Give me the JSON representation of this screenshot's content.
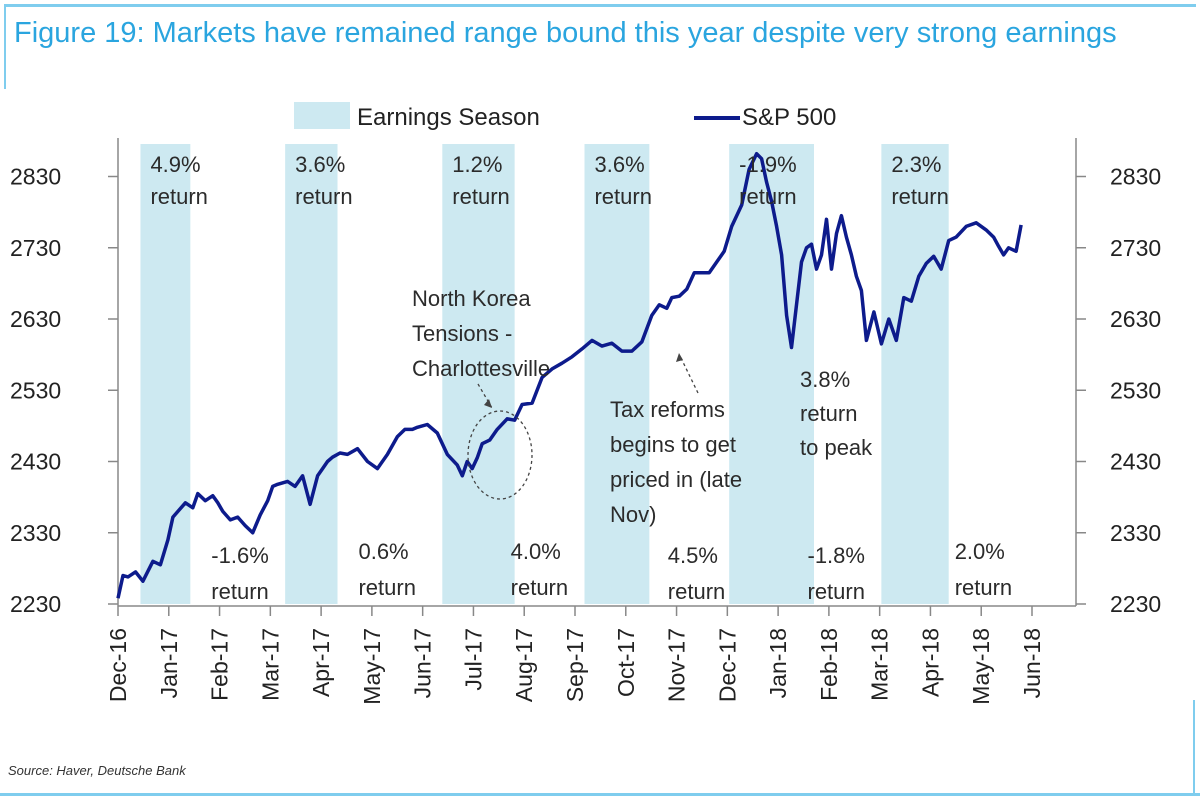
{
  "figure": {
    "title": "Figure 19: Markets have remained range bound this year despite very strong earnings",
    "source": "Source: Haver, Deutsche Bank"
  },
  "colors": {
    "title": "#2aa5df",
    "series_line": "#0d1b8c",
    "shading": "#cde9f1",
    "axis": "#888888",
    "frame_rule": "#7fcdee"
  },
  "chart_data": {
    "type": "line",
    "title": "Figure 19: Markets have remained range bound this year despite very strong earnings",
    "xlabel": "",
    "ylabel": "",
    "legend": {
      "placement": "top-center",
      "entries": [
        {
          "name": "Earnings Season",
          "kind": "shaded-band"
        },
        {
          "name": "S&P 500",
          "kind": "line"
        }
      ]
    },
    "x_tick_labels": [
      "Dec-16",
      "Jan-17",
      "Feb-17",
      "Mar-17",
      "Apr-17",
      "May-17",
      "Jun-17",
      "Jul-17",
      "Aug-17",
      "Sep-17",
      "Oct-17",
      "Nov-17",
      "Dec-17",
      "Jan-18",
      "Feb-18",
      "Mar-18",
      "Apr-18",
      "May-18",
      "Jun-18"
    ],
    "x_range_months": [
      0,
      18.6
    ],
    "ylim": [
      2230,
      2870
    ],
    "y_ticks": [
      2230,
      2330,
      2430,
      2530,
      2630,
      2730,
      2830
    ],
    "y_axes": [
      "left",
      "right"
    ],
    "grid": false,
    "earnings_seasons": [
      {
        "start": 0.45,
        "end": 1.45,
        "label": [
          "4.9%",
          "return"
        ],
        "label_position": "top"
      },
      {
        "start": 3.35,
        "end": 4.4,
        "label": [
          "3.6%",
          "return"
        ],
        "label_position": "top"
      },
      {
        "start": 6.5,
        "end": 7.95,
        "label": [
          "1.2%",
          "return"
        ],
        "label_position": "top"
      },
      {
        "start": 9.35,
        "end": 10.65,
        "label": [
          "3.6%",
          "return"
        ],
        "label_position": "top"
      },
      {
        "start": 12.25,
        "end": 13.95,
        "label": [
          "-1.9%",
          "return"
        ],
        "label_position": "top"
      },
      {
        "start": 15.3,
        "end": 16.65,
        "label": [
          "2.3%",
          "return"
        ],
        "label_position": "top"
      }
    ],
    "between_season_returns": [
      {
        "x": 1.95,
        "label": [
          "-1.6%",
          "return"
        ]
      },
      {
        "x": 4.9,
        "label": [
          "0.6%",
          "return"
        ]
      },
      {
        "x": 7.95,
        "label": [
          "4.0%",
          "return"
        ]
      },
      {
        "x": 11.1,
        "label": [
          "4.5%",
          "return"
        ]
      },
      {
        "x": 13.9,
        "label": [
          "-1.8%",
          "return"
        ]
      },
      {
        "x": 16.85,
        "label": [
          "2.0%",
          "return"
        ]
      }
    ],
    "annotations": [
      {
        "text": [
          "North Korea",
          "Tensions -",
          "Charlottesville"
        ],
        "target_x": 7.1,
        "target_y": 2445,
        "style": "dashed-circle-arrow"
      },
      {
        "text": [
          "Tax reforms",
          "begins to get",
          "priced in (late",
          "Nov)"
        ],
        "target_x": 10.95,
        "target_y": 2580,
        "style": "dashed-arrow"
      },
      {
        "text": [
          "3.8%",
          "return",
          "to peak"
        ],
        "target_x": 13.0,
        "target_y": 2585,
        "style": "text"
      }
    ],
    "series": [
      {
        "name": "S&P 500",
        "x": [
          0.0,
          0.1,
          0.2,
          0.35,
          0.5,
          0.7,
          0.85,
          1.0,
          1.1,
          1.2,
          1.35,
          1.5,
          1.6,
          1.75,
          1.9,
          2.0,
          2.1,
          2.25,
          2.4,
          2.55,
          2.7,
          2.85,
          3.0,
          3.1,
          3.2,
          3.4,
          3.55,
          3.7,
          3.85,
          4.0,
          4.1,
          4.2,
          4.3,
          4.45,
          4.6,
          4.8,
          5.0,
          5.2,
          5.4,
          5.6,
          5.75,
          5.9,
          6.0,
          6.2,
          6.4,
          6.6,
          6.8,
          6.9,
          7.0,
          7.1,
          7.2,
          7.3,
          7.45,
          7.6,
          7.8,
          7.95,
          8.1,
          8.3,
          8.5,
          8.7,
          8.9,
          9.1,
          9.3,
          9.5,
          9.7,
          9.9,
          10.1,
          10.3,
          10.5,
          10.7,
          10.85,
          11.0,
          11.1,
          11.25,
          11.4,
          11.55,
          11.7,
          11.85,
          12.0,
          12.15,
          12.3,
          12.5,
          12.65,
          12.8,
          12.9,
          13.0,
          13.1,
          13.2,
          13.3,
          13.4,
          13.5,
          13.6,
          13.7,
          13.8,
          13.9,
          14.0,
          14.1,
          14.2,
          14.3,
          14.4,
          14.5,
          14.6,
          14.7,
          14.8,
          14.9,
          15.0,
          15.15,
          15.3,
          15.45,
          15.6,
          15.75,
          15.9,
          16.05,
          16.2,
          16.35,
          16.5,
          16.65,
          16.8,
          17.0,
          17.2,
          17.4,
          17.55,
          17.65,
          17.75,
          17.85,
          18.0,
          18.1
        ],
        "y": [
          2238,
          2270,
          2268,
          2275,
          2262,
          2290,
          2285,
          2320,
          2352,
          2360,
          2372,
          2365,
          2385,
          2375,
          2382,
          2372,
          2360,
          2348,
          2352,
          2340,
          2330,
          2355,
          2375,
          2395,
          2398,
          2402,
          2395,
          2410,
          2370,
          2410,
          2420,
          2430,
          2436,
          2442,
          2440,
          2448,
          2430,
          2420,
          2440,
          2465,
          2475,
          2475,
          2478,
          2482,
          2470,
          2440,
          2425,
          2410,
          2430,
          2420,
          2435,
          2455,
          2460,
          2475,
          2490,
          2488,
          2510,
          2512,
          2548,
          2560,
          2568,
          2577,
          2588,
          2600,
          2592,
          2596,
          2585,
          2585,
          2598,
          2635,
          2650,
          2645,
          2660,
          2662,
          2672,
          2695,
          2695,
          2695,
          2710,
          2725,
          2760,
          2790,
          2840,
          2862,
          2855,
          2822,
          2795,
          2760,
          2720,
          2635,
          2590,
          2650,
          2710,
          2730,
          2735,
          2700,
          2720,
          2770,
          2700,
          2750,
          2775,
          2745,
          2720,
          2690,
          2670,
          2600,
          2640,
          2595,
          2630,
          2600,
          2660,
          2655,
          2690,
          2708,
          2718,
          2700,
          2740,
          2745,
          2760,
          2765,
          2755,
          2745,
          2732,
          2720,
          2730,
          2725,
          2762
        ]
      }
    ]
  }
}
